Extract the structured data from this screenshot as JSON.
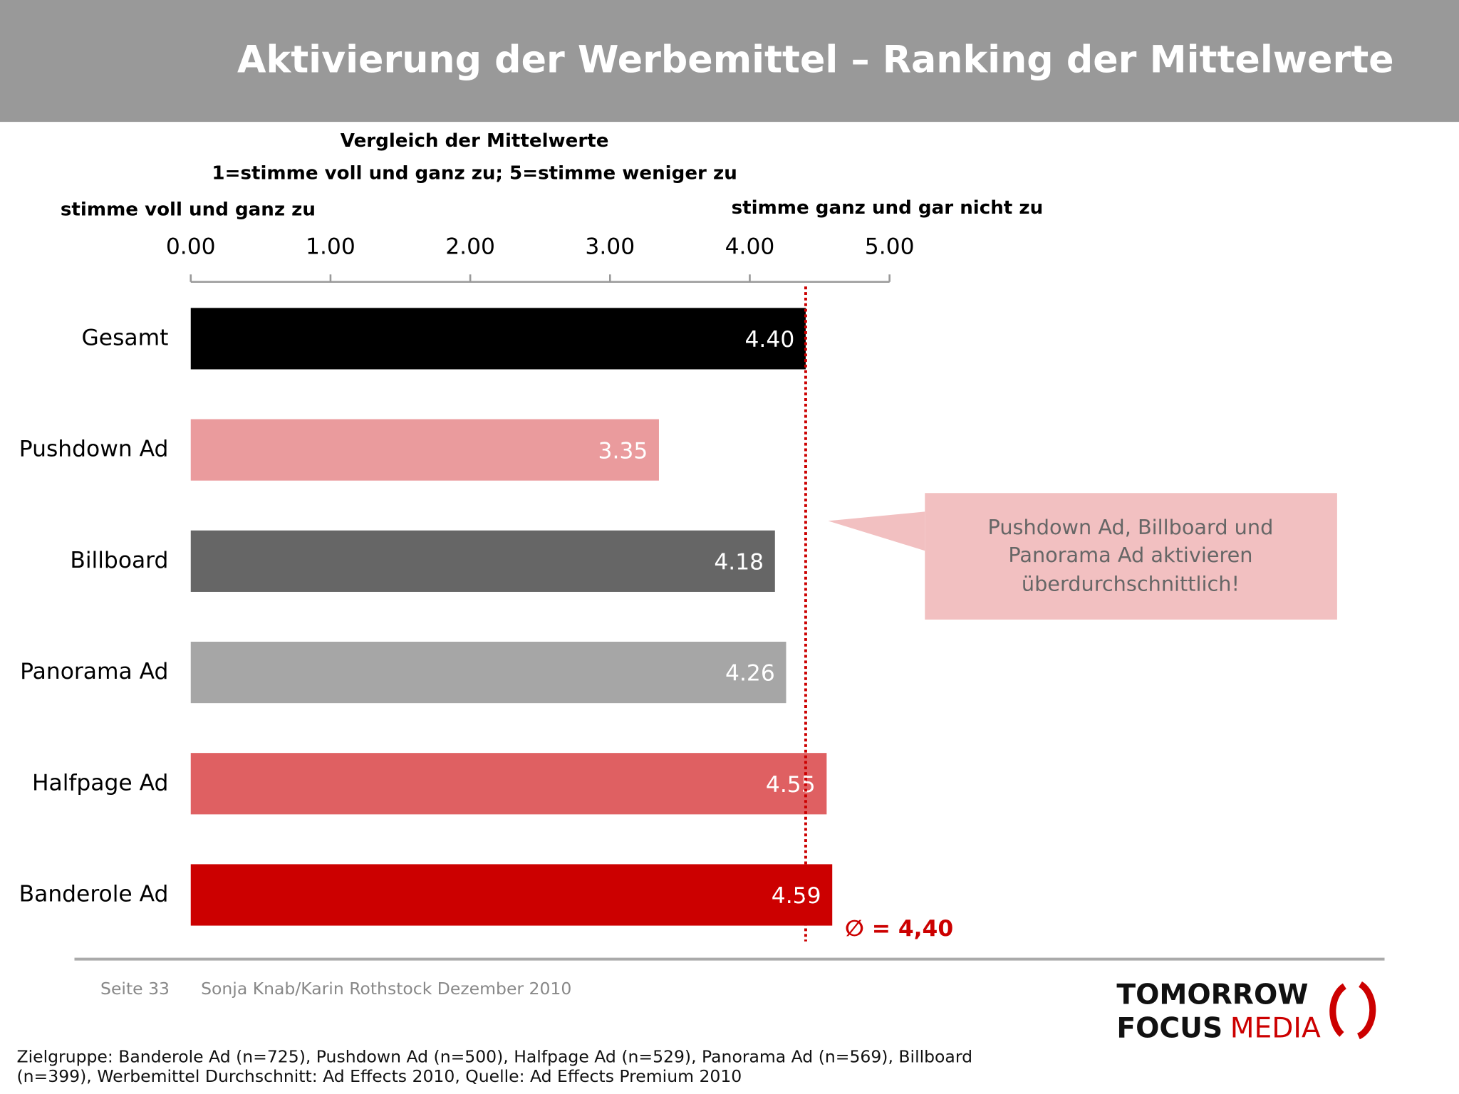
{
  "header": {
    "title": "Aktivierung der Werbemittel – Ranking der Mittelwerte"
  },
  "chart_data": {
    "type": "bar",
    "orientation": "horizontal",
    "subtitle": [
      "Vergleich der Mittelwerte",
      "1=stimme voll und ganz zu; 5=stimme weniger zu"
    ],
    "axis_left_label": "stimme voll und ganz zu",
    "axis_right_label": "stimme ganz und gar nicht zu",
    "categories": [
      "Gesamt",
      "Pushdown Ad",
      "Billboard",
      "Panorama Ad",
      "Halfpage Ad",
      "Banderole Ad"
    ],
    "values": [
      4.4,
      3.35,
      4.18,
      4.26,
      4.55,
      4.59
    ],
    "value_labels": [
      "4.40",
      "3.35",
      "4.18",
      "4.26",
      "4.55",
      "4.59"
    ],
    "colors": [
      "#000000",
      "#ea9b9d",
      "#666666",
      "#a6a6a6",
      "#df6062",
      "#cc0000"
    ],
    "xlim": [
      0,
      5
    ],
    "xticks": [
      {
        "value": 0,
        "label": "0.00"
      },
      {
        "value": 1,
        "label": "1.00"
      },
      {
        "value": 2,
        "label": "2.00"
      },
      {
        "value": 3,
        "label": "3.00"
      },
      {
        "value": 4,
        "label": "4.00"
      },
      {
        "value": 5,
        "label": "5.00"
      }
    ],
    "reference_line": {
      "value": 4.4,
      "label": "∅ = 4,40",
      "color": "#cc0000"
    },
    "annotation": [
      "Pushdown Ad, Billboard und",
      "Panorama Ad aktivieren",
      "überdurchschnittlich!"
    ]
  },
  "footer": {
    "page": "Seite 33",
    "author": "Sonja Knab/Karin Rothstock Dezember 2010",
    "note": [
      "Zielgruppe: Banderole Ad (n=725), Pushdown Ad (n=500), Halfpage Ad (n=529), Panorama Ad (n=569), Billboard",
      "(n=399), Werbemittel Durchschnitt: Ad Effects 2010, Quelle: Ad Effects Premium 2010"
    ]
  },
  "logo": {
    "top": "TOMORROW",
    "bottom_left": "FOCUS",
    "bottom_right": "MEDIA"
  }
}
